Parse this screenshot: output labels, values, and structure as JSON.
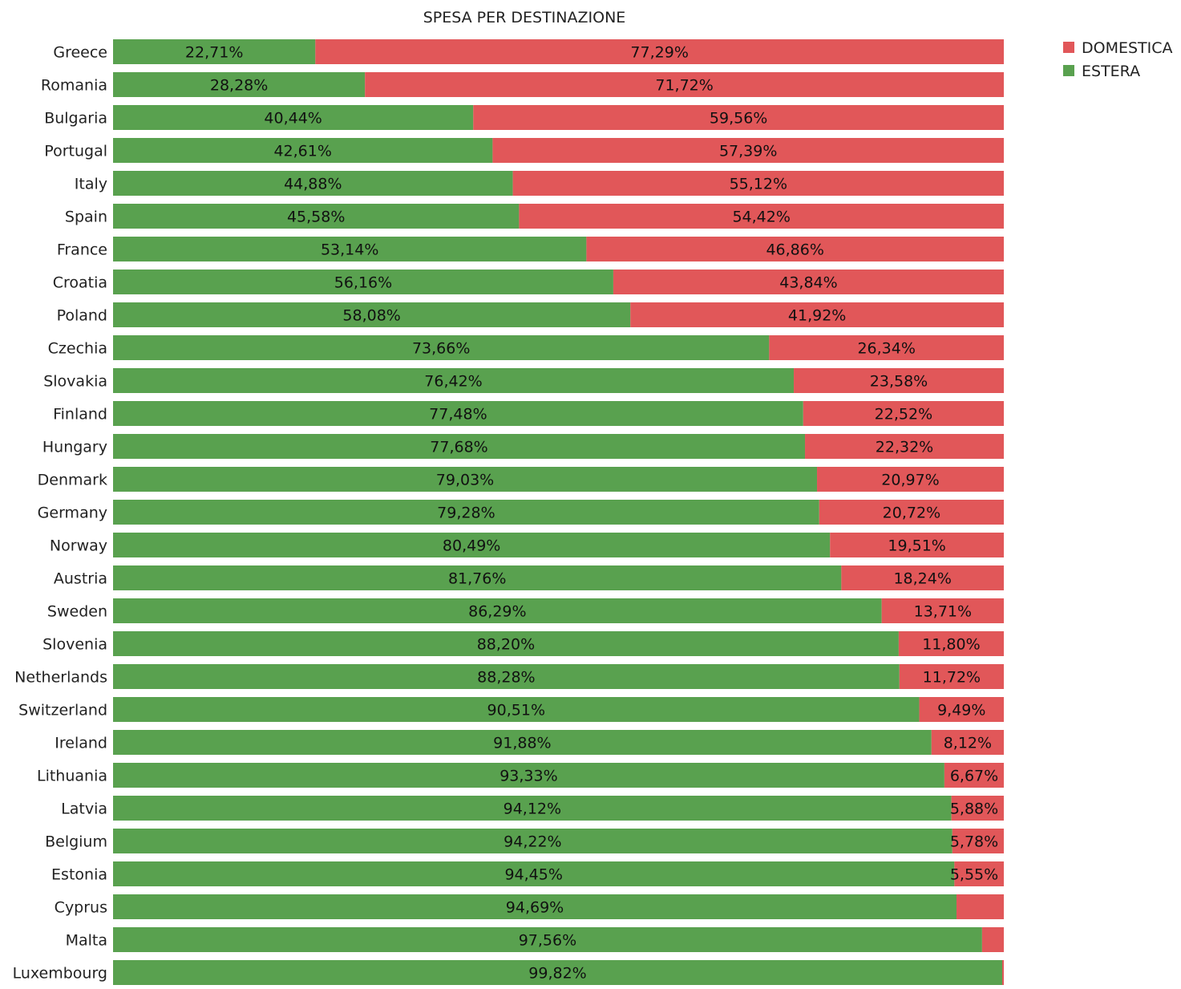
{
  "chart_data": {
    "type": "bar",
    "orientation": "horizontal",
    "stacked": true,
    "normalized_percent": true,
    "title": "SPESA PER DESTINAZIONE",
    "xlabel": "",
    "ylabel": "",
    "xlim": [
      0,
      100
    ],
    "grid": false,
    "legend_position": "top-right",
    "categories": [
      "Greece",
      "Romania",
      "Bulgaria",
      "Portugal",
      "Italy",
      "Spain",
      "France",
      "Croatia",
      "Poland",
      "Czechia",
      "Slovakia",
      "Finland",
      "Hungary",
      "Denmark",
      "Germany",
      "Norway",
      "Austria",
      "Sweden",
      "Slovenia",
      "Netherlands",
      "Switzerland",
      "Ireland",
      "Lithuania",
      "Latvia",
      "Belgium",
      "Estonia",
      "Cyprus",
      "Malta",
      "Luxembourg"
    ],
    "series": [
      {
        "name": "ESTERA",
        "color": "#59a14f",
        "values": [
          22.71,
          28.28,
          40.44,
          42.61,
          44.88,
          45.58,
          53.14,
          56.16,
          58.08,
          73.66,
          76.42,
          77.48,
          77.68,
          79.03,
          79.28,
          80.49,
          81.76,
          86.29,
          88.2,
          88.28,
          90.51,
          91.88,
          93.33,
          94.12,
          94.22,
          94.45,
          94.69,
          97.56,
          99.82
        ],
        "labels": [
          "22,71%",
          "28,28%",
          "40,44%",
          "42,61%",
          "44,88%",
          "45,58%",
          "53,14%",
          "56,16%",
          "58,08%",
          "73,66%",
          "76,42%",
          "77,48%",
          "77,68%",
          "79,03%",
          "79,28%",
          "80,49%",
          "81,76%",
          "86,29%",
          "88,20%",
          "88,28%",
          "90,51%",
          "91,88%",
          "93,33%",
          "94,12%",
          "94,22%",
          "94,45%",
          "94,69%",
          "97,56%",
          "99,82%"
        ]
      },
      {
        "name": "DOMESTICA",
        "color": "#e15759",
        "values": [
          77.29,
          71.72,
          59.56,
          57.39,
          55.12,
          54.42,
          46.86,
          43.84,
          41.92,
          26.34,
          23.58,
          22.52,
          22.32,
          20.97,
          20.72,
          19.51,
          18.24,
          13.71,
          11.8,
          11.72,
          9.49,
          8.12,
          6.67,
          5.88,
          5.78,
          5.55,
          5.31,
          2.44,
          0.18
        ],
        "labels": [
          "77,29%",
          "71,72%",
          "59,56%",
          "57,39%",
          "55,12%",
          "54,42%",
          "46,86%",
          "43,84%",
          "41,92%",
          "26,34%",
          "23,58%",
          "22,52%",
          "22,32%",
          "20,97%",
          "20,72%",
          "19,51%",
          "18,24%",
          "13,71%",
          "11,80%",
          "11,72%",
          "9,49%",
          "8,12%",
          "6,67%",
          "5,88%",
          "5,78%",
          "5,55%",
          "",
          "",
          ""
        ]
      }
    ],
    "legend": [
      {
        "name": "DOMESTICA",
        "color": "#e15759"
      },
      {
        "name": "ESTERA",
        "color": "#59a14f"
      }
    ]
  }
}
